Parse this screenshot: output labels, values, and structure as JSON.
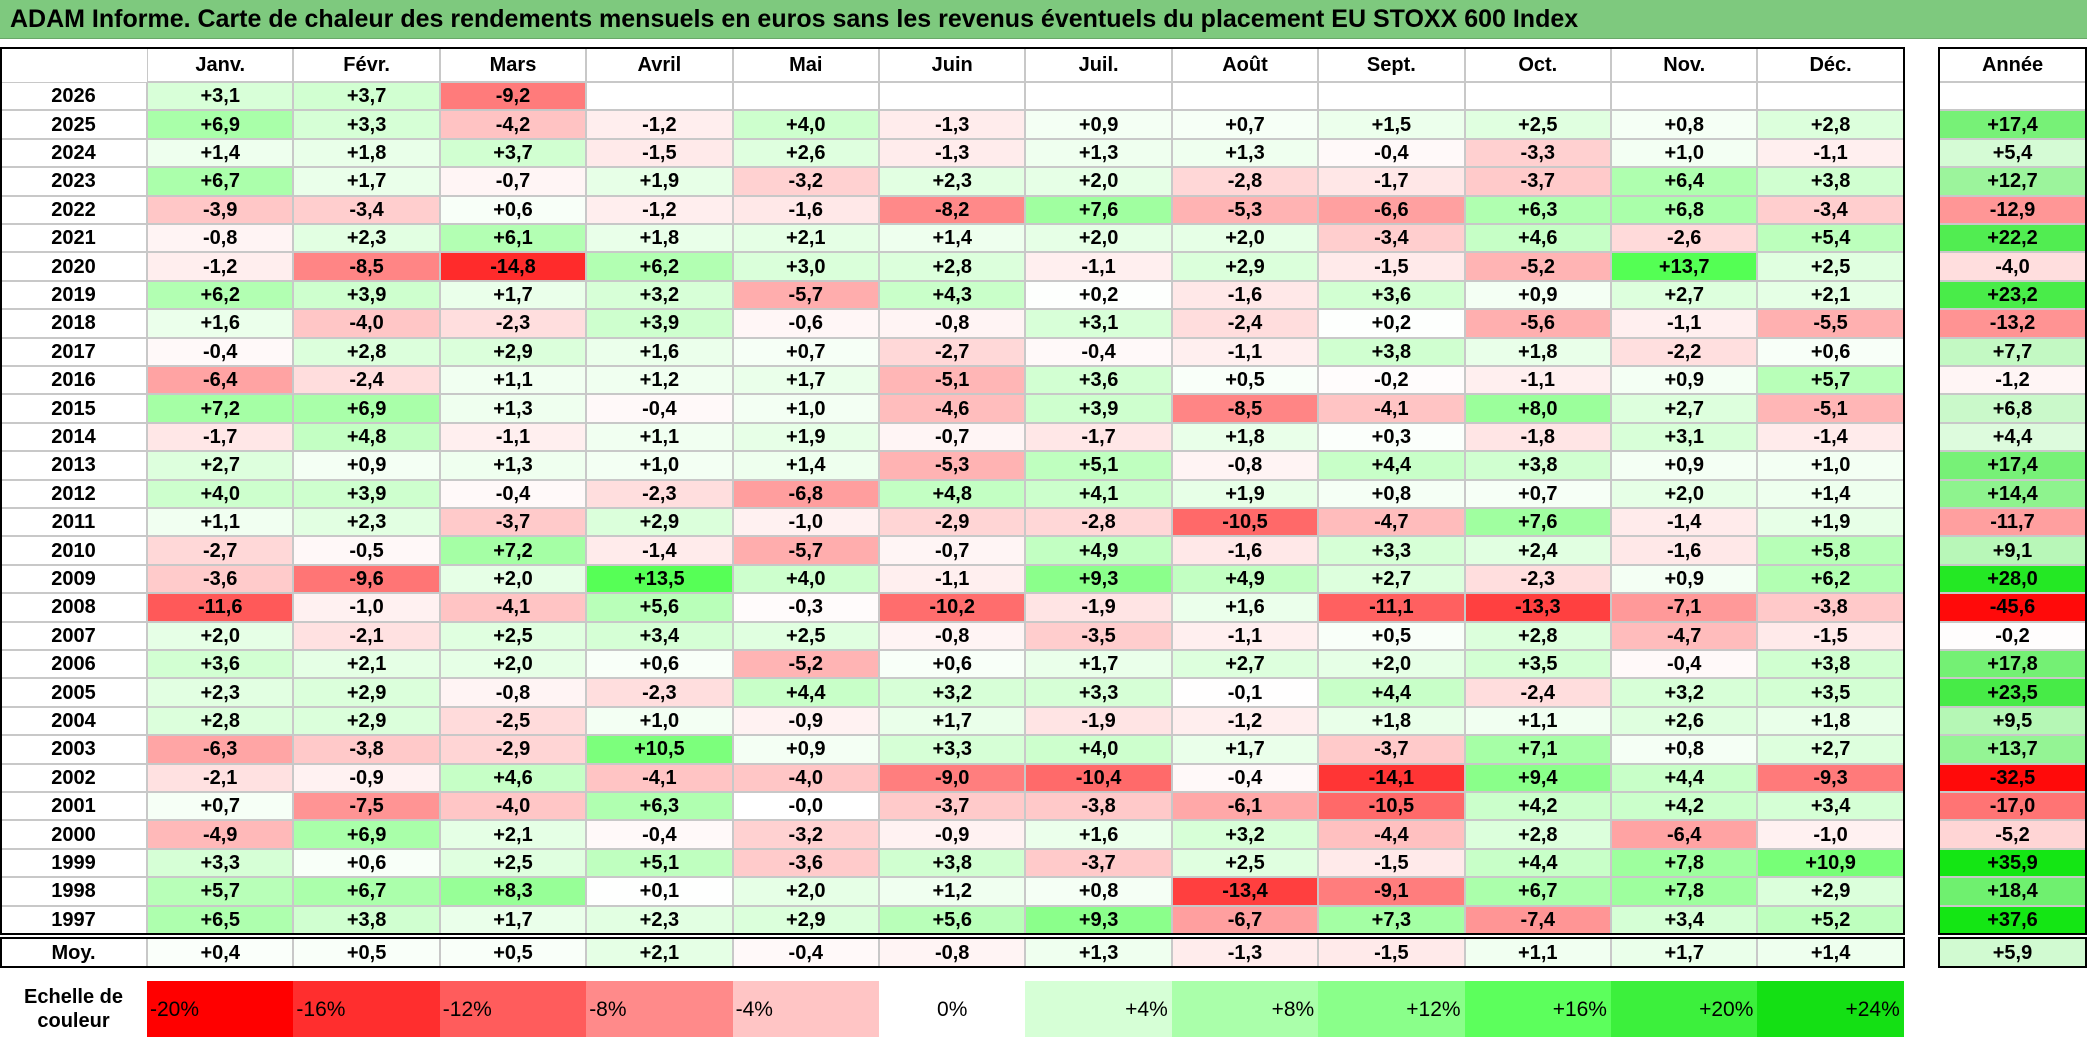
{
  "title": "ADAM Informe. Carte de chaleur des rendements mensuels en euros sans les revenus éventuels du placement EU STOXX 600 Index",
  "chart_data": {
    "type": "heatmap",
    "title": "ADAM Informe. Carte de chaleur des rendements mensuels en euros sans les revenus éventuels du placement EU STOXX 600 Index",
    "months": [
      "Janv.",
      "Févr.",
      "Mars",
      "Avril",
      "Mai",
      "Juin",
      "Juil.",
      "Août",
      "Sept.",
      "Oct.",
      "Nov.",
      "Déc."
    ],
    "annual_header": "Année",
    "rows": [
      {
        "year": "2026",
        "values": [
          "+3,1",
          "+3,7",
          "-9,2",
          "",
          "",
          "",
          "",
          "",
          "",
          "",
          "",
          ""
        ],
        "annual": ""
      },
      {
        "year": "2025",
        "values": [
          "+6,9",
          "+3,3",
          "-4,2",
          "-1,2",
          "+4,0",
          "-1,3",
          "+0,9",
          "+0,7",
          "+1,5",
          "+2,5",
          "+0,8",
          "+2,8"
        ],
        "annual": "+17,4"
      },
      {
        "year": "2024",
        "values": [
          "+1,4",
          "+1,8",
          "+3,7",
          "-1,5",
          "+2,6",
          "-1,3",
          "+1,3",
          "+1,3",
          "-0,4",
          "-3,3",
          "+1,0",
          "-1,1"
        ],
        "annual": "+5,4"
      },
      {
        "year": "2023",
        "values": [
          "+6,7",
          "+1,7",
          "-0,7",
          "+1,9",
          "-3,2",
          "+2,3",
          "+2,0",
          "-2,8",
          "-1,7",
          "-3,7",
          "+6,4",
          "+3,8"
        ],
        "annual": "+12,7"
      },
      {
        "year": "2022",
        "values": [
          "-3,9",
          "-3,4",
          "+0,6",
          "-1,2",
          "-1,6",
          "-8,2",
          "+7,6",
          "-5,3",
          "-6,6",
          "+6,3",
          "+6,8",
          "-3,4"
        ],
        "annual": "-12,9"
      },
      {
        "year": "2021",
        "values": [
          "-0,8",
          "+2,3",
          "+6,1",
          "+1,8",
          "+2,1",
          "+1,4",
          "+2,0",
          "+2,0",
          "-3,4",
          "+4,6",
          "-2,6",
          "+5,4"
        ],
        "annual": "+22,2"
      },
      {
        "year": "2020",
        "values": [
          "-1,2",
          "-8,5",
          "-14,8",
          "+6,2",
          "+3,0",
          "+2,8",
          "-1,1",
          "+2,9",
          "-1,5",
          "-5,2",
          "+13,7",
          "+2,5"
        ],
        "annual": "-4,0"
      },
      {
        "year": "2019",
        "values": [
          "+6,2",
          "+3,9",
          "+1,7",
          "+3,2",
          "-5,7",
          "+4,3",
          "+0,2",
          "-1,6",
          "+3,6",
          "+0,9",
          "+2,7",
          "+2,1"
        ],
        "annual": "+23,2"
      },
      {
        "year": "2018",
        "values": [
          "+1,6",
          "-4,0",
          "-2,3",
          "+3,9",
          "-0,6",
          "-0,8",
          "+3,1",
          "-2,4",
          "+0,2",
          "-5,6",
          "-1,1",
          "-5,5"
        ],
        "annual": "-13,2"
      },
      {
        "year": "2017",
        "values": [
          "-0,4",
          "+2,8",
          "+2,9",
          "+1,6",
          "+0,7",
          "-2,7",
          "-0,4",
          "-1,1",
          "+3,8",
          "+1,8",
          "-2,2",
          "+0,6"
        ],
        "annual": "+7,7"
      },
      {
        "year": "2016",
        "values": [
          "-6,4",
          "-2,4",
          "+1,1",
          "+1,2",
          "+1,7",
          "-5,1",
          "+3,6",
          "+0,5",
          "-0,2",
          "-1,1",
          "+0,9",
          "+5,7"
        ],
        "annual": "-1,2"
      },
      {
        "year": "2015",
        "values": [
          "+7,2",
          "+6,9",
          "+1,3",
          "-0,4",
          "+1,0",
          "-4,6",
          "+3,9",
          "-8,5",
          "-4,1",
          "+8,0",
          "+2,7",
          "-5,1"
        ],
        "annual": "+6,8"
      },
      {
        "year": "2014",
        "values": [
          "-1,7",
          "+4,8",
          "-1,1",
          "+1,1",
          "+1,9",
          "-0,7",
          "-1,7",
          "+1,8",
          "+0,3",
          "-1,8",
          "+3,1",
          "-1,4"
        ],
        "annual": "+4,4"
      },
      {
        "year": "2013",
        "values": [
          "+2,7",
          "+0,9",
          "+1,3",
          "+1,0",
          "+1,4",
          "-5,3",
          "+5,1",
          "-0,8",
          "+4,4",
          "+3,8",
          "+0,9",
          "+1,0"
        ],
        "annual": "+17,4"
      },
      {
        "year": "2012",
        "values": [
          "+4,0",
          "+3,9",
          "-0,4",
          "-2,3",
          "-6,8",
          "+4,8",
          "+4,1",
          "+1,9",
          "+0,8",
          "+0,7",
          "+2,0",
          "+1,4"
        ],
        "annual": "+14,4"
      },
      {
        "year": "2011",
        "values": [
          "+1,1",
          "+2,3",
          "-3,7",
          "+2,9",
          "-1,0",
          "-2,9",
          "-2,8",
          "-10,5",
          "-4,7",
          "+7,6",
          "-1,4",
          "+1,9"
        ],
        "annual": "-11,7"
      },
      {
        "year": "2010",
        "values": [
          "-2,7",
          "-0,5",
          "+7,2",
          "-1,4",
          "-5,7",
          "-0,7",
          "+4,9",
          "-1,6",
          "+3,3",
          "+2,4",
          "-1,6",
          "+5,8"
        ],
        "annual": "+9,1"
      },
      {
        "year": "2009",
        "values": [
          "-3,6",
          "-9,6",
          "+2,0",
          "+13,5",
          "+4,0",
          "-1,1",
          "+9,3",
          "+4,9",
          "+2,7",
          "-2,3",
          "+0,9",
          "+6,2"
        ],
        "annual": "+28,0"
      },
      {
        "year": "2008",
        "values": [
          "-11,6",
          "-1,0",
          "-4,1",
          "+5,6",
          "-0,3",
          "-10,2",
          "-1,9",
          "+1,6",
          "-11,1",
          "-13,3",
          "-7,1",
          "-3,8"
        ],
        "annual": "-45,6"
      },
      {
        "year": "2007",
        "values": [
          "+2,0",
          "-2,1",
          "+2,5",
          "+3,4",
          "+2,5",
          "-0,8",
          "-3,5",
          "-1,1",
          "+0,5",
          "+2,8",
          "-4,7",
          "-1,5"
        ],
        "annual": "-0,2"
      },
      {
        "year": "2006",
        "values": [
          "+3,6",
          "+2,1",
          "+2,0",
          "+0,6",
          "-5,2",
          "+0,6",
          "+1,7",
          "+2,7",
          "+2,0",
          "+3,5",
          "-0,4",
          "+3,8"
        ],
        "annual": "+17,8"
      },
      {
        "year": "2005",
        "values": [
          "+2,3",
          "+2,9",
          "-0,8",
          "-2,3",
          "+4,4",
          "+3,2",
          "+3,3",
          "-0,1",
          "+4,4",
          "-2,4",
          "+3,2",
          "+3,5"
        ],
        "annual": "+23,5"
      },
      {
        "year": "2004",
        "values": [
          "+2,8",
          "+2,9",
          "-2,5",
          "+1,0",
          "-0,9",
          "+1,7",
          "-1,9",
          "-1,2",
          "+1,8",
          "+1,1",
          "+2,6",
          "+1,8"
        ],
        "annual": "+9,5"
      },
      {
        "year": "2003",
        "values": [
          "-6,3",
          "-3,8",
          "-2,9",
          "+10,5",
          "+0,9",
          "+3,3",
          "+4,0",
          "+1,7",
          "-3,7",
          "+7,1",
          "+0,8",
          "+2,7"
        ],
        "annual": "+13,7"
      },
      {
        "year": "2002",
        "values": [
          "-2,1",
          "-0,9",
          "+4,6",
          "-4,1",
          "-4,0",
          "-9,0",
          "-10,4",
          "-0,4",
          "-14,1",
          "+9,4",
          "+4,4",
          "-9,3"
        ],
        "annual": "-32,5"
      },
      {
        "year": "2001",
        "values": [
          "+0,7",
          "-7,5",
          "-4,0",
          "+6,3",
          "-0,0",
          "-3,7",
          "-3,8",
          "-6,1",
          "-10,5",
          "+4,2",
          "+4,2",
          "+3,4"
        ],
        "annual": "-17,0"
      },
      {
        "year": "2000",
        "values": [
          "-4,9",
          "+6,9",
          "+2,1",
          "-0,4",
          "-3,2",
          "-0,9",
          "+1,6",
          "+3,2",
          "-4,4",
          "+2,8",
          "-6,4",
          "-1,0"
        ],
        "annual": "-5,2"
      },
      {
        "year": "1999",
        "values": [
          "+3,3",
          "+0,6",
          "+2,5",
          "+5,1",
          "-3,6",
          "+3,8",
          "-3,7",
          "+2,5",
          "-1,5",
          "+4,4",
          "+7,8",
          "+10,9"
        ],
        "annual": "+35,9"
      },
      {
        "year": "1998",
        "values": [
          "+5,7",
          "+6,7",
          "+8,3",
          "+0,1",
          "+2,0",
          "+1,2",
          "+0,8",
          "-13,4",
          "-9,1",
          "+6,7",
          "+7,8",
          "+2,9"
        ],
        "annual": "+18,4"
      },
      {
        "year": "1997",
        "values": [
          "+6,5",
          "+3,8",
          "+1,7",
          "+2,3",
          "+2,9",
          "+5,6",
          "+9,3",
          "-6,7",
          "+7,3",
          "-7,4",
          "+3,4",
          "+5,2"
        ],
        "annual": "+37,6"
      }
    ],
    "average": {
      "label": "Moy.",
      "values": [
        "+0,4",
        "+0,5",
        "+0,5",
        "+2,1",
        "-0,4",
        "-0,8",
        "+1,3",
        "-1,3",
        "-1,5",
        "+1,1",
        "+1,7",
        "+1,4"
      ],
      "annual": "+5,9"
    },
    "color_scale": {
      "label_line1": "Echelle de",
      "label_line2": "couleur",
      "stops": [
        {
          "label": "-20%",
          "color": "#ff0000"
        },
        {
          "label": "-16%",
          "color": "#ff2e2e"
        },
        {
          "label": "-12%",
          "color": "#ff5c5c"
        },
        {
          "label": "-8%",
          "color": "#ff8a8a"
        },
        {
          "label": "-4%",
          "color": "#ffc5c5"
        },
        {
          "label": "0%",
          "color": "#ffffff"
        },
        {
          "label": "+4%",
          "color": "#d6ffd6"
        },
        {
          "label": "+8%",
          "color": "#aaffaa"
        },
        {
          "label": "+12%",
          "color": "#8aff8a"
        },
        {
          "label": "+16%",
          "color": "#5cff5c"
        },
        {
          "label": "+20%",
          "color": "#3cf03c"
        },
        {
          "label": "+24%",
          "color": "#14e014"
        }
      ]
    }
  }
}
